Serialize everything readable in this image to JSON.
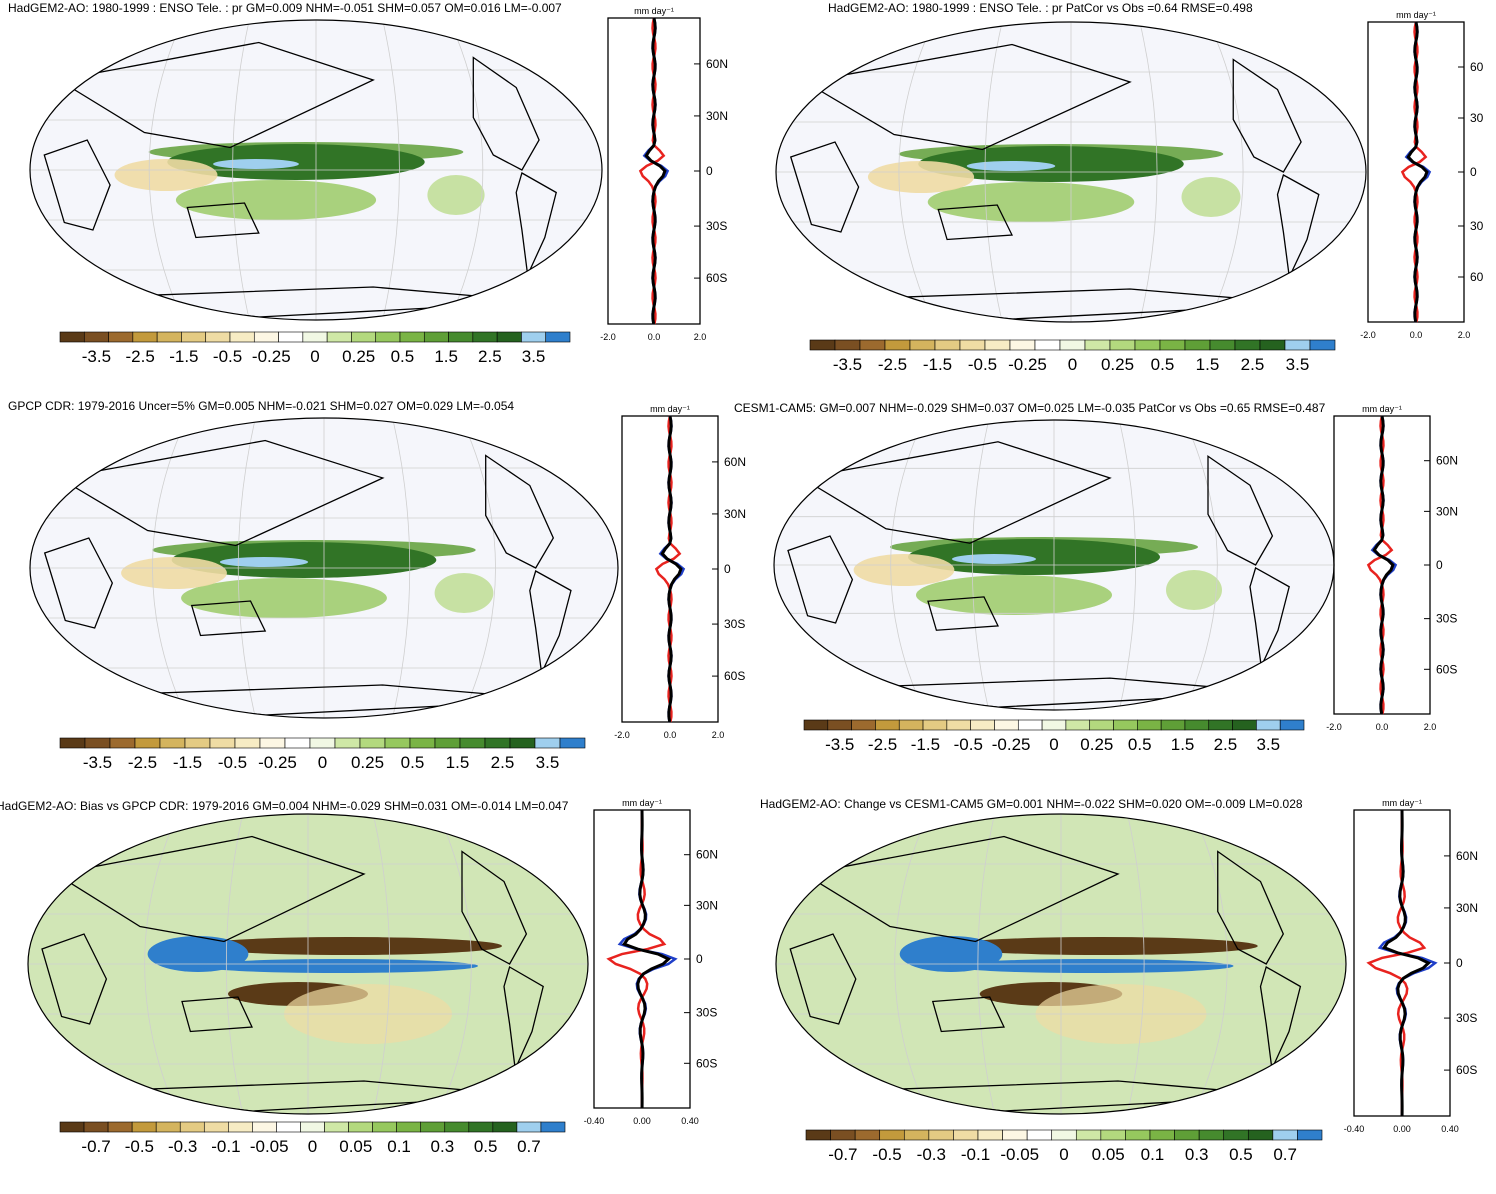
{
  "colors": {
    "scale": [
      "#5a3a17",
      "#7a4f22",
      "#9c6a2e",
      "#c39a3c",
      "#d4b45e",
      "#e4cb83",
      "#efdca4",
      "#f7ecc4",
      "#fdf7e4",
      "#ffffff",
      "#f1f8e4",
      "#cfe8a6",
      "#b3d97e",
      "#96c85e",
      "#7ab445",
      "#5f9f37",
      "#468b2e",
      "#317426",
      "#25621f",
      "#9fcfee",
      "#2f7fcc"
    ],
    "lat_zonal_model": "#000000",
    "lat_zonal_obs_a": "#e8231f",
    "lat_zonal_obs_b": "#1f3fc9",
    "ocean_bg": "#f5f6fb"
  },
  "panels": [
    {
      "id": "top-left",
      "title": "HadGEM2-AO: 1980-1999 : ENSO Tele. : pr GM=0.009 NHM=-0.051 SHM=0.057 OM=0.016 LM=-0.007",
      "colorbar_labels": [
        "-3.5",
        "-2.5",
        "-1.5",
        "-0.5",
        "-0.25",
        "0",
        "0.25",
        "0.5",
        "1.5",
        "2.5",
        "3.5"
      ],
      "units": "mm day⁻¹",
      "lat_ticks": [
        "60N",
        "30N",
        "0",
        "30S",
        "60S"
      ],
      "x_ticks": [
        "-2.0",
        "0.0",
        "2.0"
      ]
    },
    {
      "id": "top-right",
      "title": "HadGEM2-AO: 1980-1999 : ENSO Tele. : pr PatCor vs Obs =0.64 RMSE=0.498",
      "colorbar_labels": [
        "-3.5",
        "-2.5",
        "-1.5",
        "-0.5",
        "-0.25",
        "0",
        "0.25",
        "0.5",
        "1.5",
        "2.5",
        "3.5"
      ],
      "units": "mm day⁻¹",
      "lat_ticks": [
        "60",
        "30",
        "0",
        "30",
        "60"
      ],
      "x_ticks": [
        "-2.0",
        "0.0",
        "2.0"
      ]
    },
    {
      "id": "mid-left",
      "title": "GPCP CDR: 1979-2016 Uncer=5% GM=0.005 NHM=-0.021 SHM=0.027 OM=0.029 LM=-0.054",
      "colorbar_labels": [
        "-3.5",
        "-2.5",
        "-1.5",
        "-0.5",
        "-0.25",
        "0",
        "0.25",
        "0.5",
        "1.5",
        "2.5",
        "3.5"
      ],
      "units": "mm day⁻¹",
      "lat_ticks": [
        "60N",
        "30N",
        "0",
        "30S",
        "60S"
      ],
      "x_ticks": [
        "-2.0",
        "0.0",
        "2.0"
      ]
    },
    {
      "id": "mid-right",
      "title": "CESM1-CAM5: GM=0.007 NHM=-0.029 SHM=0.037 OM=0.025 LM=-0.035 PatCor vs Obs =0.65 RMSE=0.487",
      "colorbar_labels": [
        "-3.5",
        "-2.5",
        "-1.5",
        "-0.5",
        "-0.25",
        "0",
        "0.25",
        "0.5",
        "1.5",
        "2.5",
        "3.5"
      ],
      "units": "mm day⁻¹",
      "lat_ticks": [
        "60N",
        "30N",
        "0",
        "30S",
        "60S"
      ],
      "x_ticks": [
        "-2.0",
        "0.0",
        "2.0"
      ]
    },
    {
      "id": "bottom-left",
      "title": "HadGEM2-AO: Bias vs GPCP CDR: 1979-2016 GM=0.004 NHM=-0.029 SHM=0.031 OM=-0.014 LM=0.047",
      "colorbar_labels": [
        "-0.7",
        "-0.5",
        "-0.3",
        "-0.1",
        "-0.05",
        "0",
        "0.05",
        "0.1",
        "0.3",
        "0.5",
        "0.7"
      ],
      "units": "mm day⁻¹",
      "lat_ticks": [
        "60N",
        "30N",
        "0",
        "30S",
        "60S"
      ],
      "x_ticks": [
        "-0.40",
        "0.00",
        "0.40"
      ]
    },
    {
      "id": "bottom-right",
      "title": "HadGEM2-AO: Change vs CESM1-CAM5 GM=0.001 NHM=-0.022 SHM=0.020 OM=-0.009 LM=0.028",
      "colorbar_labels": [
        "-0.7",
        "-0.5",
        "-0.3",
        "-0.1",
        "-0.05",
        "0",
        "0.05",
        "0.1",
        "0.3",
        "0.5",
        "0.7"
      ],
      "units": "mm day⁻¹",
      "lat_ticks": [
        "60N",
        "30N",
        "0",
        "30S",
        "60S"
      ],
      "x_ticks": [
        "-0.40",
        "0.00",
        "0.40"
      ]
    }
  ],
  "chart_data": [
    {
      "type": "heatmap",
      "title": "HadGEM2-AO: 1980-1999 : ENSO Tele. : pr GM=0.009 NHM=-0.051 SHM=0.057 OM=0.016 LM=-0.007",
      "colorbar": [
        -3.5,
        -2.5,
        -1.5,
        -0.5,
        -0.25,
        0,
        0.25,
        0.5,
        1.5,
        2.5,
        3.5
      ],
      "zonal_mean": {
        "xlim": [
          -2.0,
          2.0
        ],
        "lat_ticks": [
          "60N",
          "30N",
          "0",
          "30S",
          "60S"
        ],
        "series": [
          {
            "values_lat": [
              60,
              30,
              10,
              0,
              -10,
              -30,
              -60
            ],
            "values": [
              0,
              0,
              -0.3,
              0.4,
              0.1,
              0,
              0
            ]
          }
        ]
      }
    },
    {
      "type": "heatmap",
      "title": "HadGEM2-AO: 1980-1999 : ENSO Tele. : pr PatCor vs Obs =0.64 RMSE=0.498",
      "colorbar": [
        -3.5,
        -2.5,
        -1.5,
        -0.5,
        -0.25,
        0,
        0.25,
        0.5,
        1.5,
        2.5,
        3.5
      ],
      "zonal_mean": {
        "xlim": [
          -2.0,
          2.0
        ]
      }
    },
    {
      "type": "heatmap",
      "title": "GPCP CDR: 1979-2016 Uncer=5% GM=0.005 NHM=-0.021 SHM=0.027 OM=0.029 LM=-0.054",
      "colorbar": [
        -3.5,
        -2.5,
        -1.5,
        -0.5,
        -0.25,
        0,
        0.25,
        0.5,
        1.5,
        2.5,
        3.5
      ],
      "zonal_mean": {
        "xlim": [
          -2.0,
          2.0
        ]
      }
    },
    {
      "type": "heatmap",
      "title": "CESM1-CAM5: GM=0.007 NHM=-0.029 SHM=0.037 OM=0.025 LM=-0.035 PatCor vs Obs =0.65 RMSE=0.487",
      "colorbar": [
        -3.5,
        -2.5,
        -1.5,
        -0.5,
        -0.25,
        0,
        0.25,
        0.5,
        1.5,
        2.5,
        3.5
      ],
      "zonal_mean": {
        "xlim": [
          -2.0,
          2.0
        ]
      }
    },
    {
      "type": "heatmap",
      "title": "HadGEM2-AO: Bias vs GPCP CDR: 1979-2016 GM=0.004 NHM=-0.029 SHM=0.031 OM=-0.014 LM=0.047",
      "colorbar": [
        -0.7,
        -0.5,
        -0.3,
        -0.1,
        -0.05,
        0,
        0.05,
        0.1,
        0.3,
        0.5,
        0.7
      ],
      "zonal_mean": {
        "xlim": [
          -0.4,
          0.4
        ]
      }
    },
    {
      "type": "heatmap",
      "title": "HadGEM2-AO: Change vs CESM1-CAM5 GM=0.001 NHM=-0.022 SHM=0.020 OM=-0.009 LM=0.028",
      "colorbar": [
        -0.7,
        -0.5,
        -0.3,
        -0.1,
        -0.05,
        0,
        0.05,
        0.1,
        0.3,
        0.5,
        0.7
      ],
      "zonal_mean": {
        "xlim": [
          -0.4,
          0.4
        ]
      }
    }
  ]
}
